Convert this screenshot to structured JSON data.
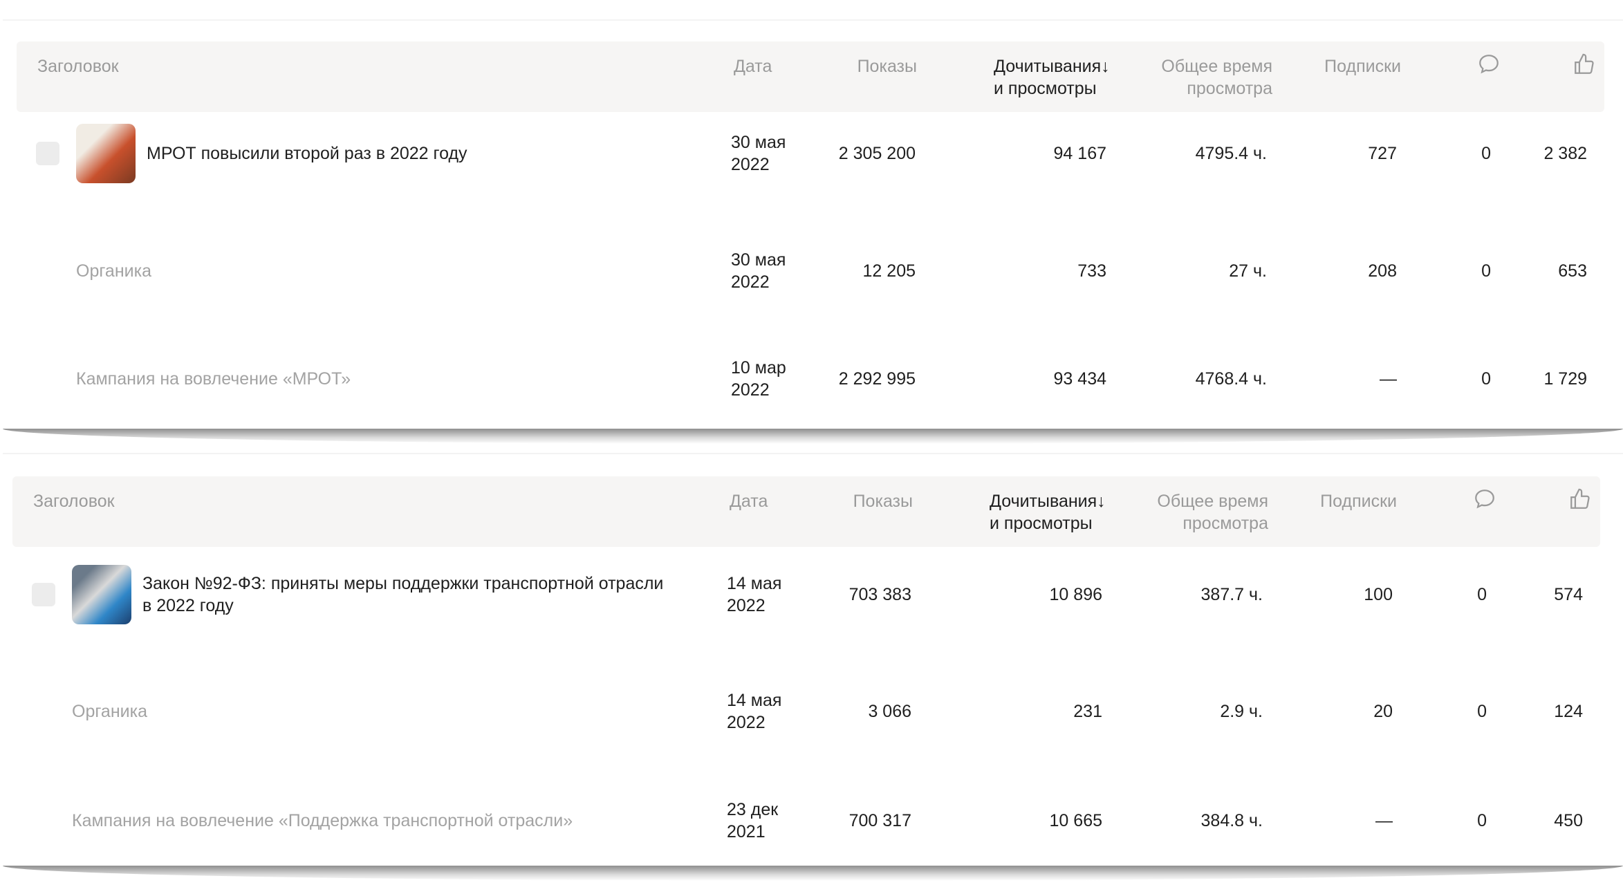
{
  "columns": {
    "title": "Заголовок",
    "date": "Дата",
    "impressions": "Показы",
    "reads_line1": "Дочитывания",
    "sort_arrow": "↓",
    "reads_line2": "и просмотры",
    "time_line1": "Общее время",
    "time_line2": "просмотра",
    "subscriptions": "Подписки",
    "comments_icon": "comment-icon",
    "likes_icon": "thumbs-up-icon"
  },
  "tables": [
    {
      "rows": [
        {
          "type": "publication",
          "title": "МРОТ повысили второй раз в 2022 году",
          "date1": "30 мая",
          "date2": "2022",
          "impressions": "2 305 200",
          "reads": "94 167",
          "time": "4795.4 ч.",
          "subs": "727",
          "comments": "0",
          "likes": "2 382"
        },
        {
          "type": "source",
          "title": "Органика",
          "date1": "30 мая",
          "date2": "2022",
          "impressions": "12 205",
          "reads": "733",
          "time": "27 ч.",
          "subs": "208",
          "comments": "0",
          "likes": "653"
        },
        {
          "type": "source",
          "title": "Кампания на вовлечение «МРОТ»",
          "date1": "10 мар",
          "date2": "2022",
          "impressions": "2 292 995",
          "reads": "93 434",
          "time": "4768.4 ч.",
          "subs": "—",
          "comments": "0",
          "likes": "1 729"
        }
      ]
    },
    {
      "rows": [
        {
          "type": "publication",
          "title": "Закон №92-ФЗ: приняты меры поддержки транспортной отрасли",
          "title2": "в 2022 году",
          "date1": "14 мая",
          "date2": "2022",
          "impressions": "703 383",
          "reads": "10 896",
          "time": "387.7 ч.",
          "subs": "100",
          "comments": "0",
          "likes": "574"
        },
        {
          "type": "source",
          "title": "Органика",
          "date1": "14 мая",
          "date2": "2022",
          "impressions": "3 066",
          "reads": "231",
          "time": "2.9 ч.",
          "subs": "20",
          "comments": "0",
          "likes": "124"
        },
        {
          "type": "source",
          "title": "Кампания на вовлечение «Поддержка транспортной отрасли»",
          "date1": "23 дек",
          "date2": "2021",
          "impressions": "700 317",
          "reads": "10 665",
          "time": "384.8 ч.",
          "subs": "—",
          "comments": "0",
          "likes": "450"
        }
      ]
    }
  ]
}
